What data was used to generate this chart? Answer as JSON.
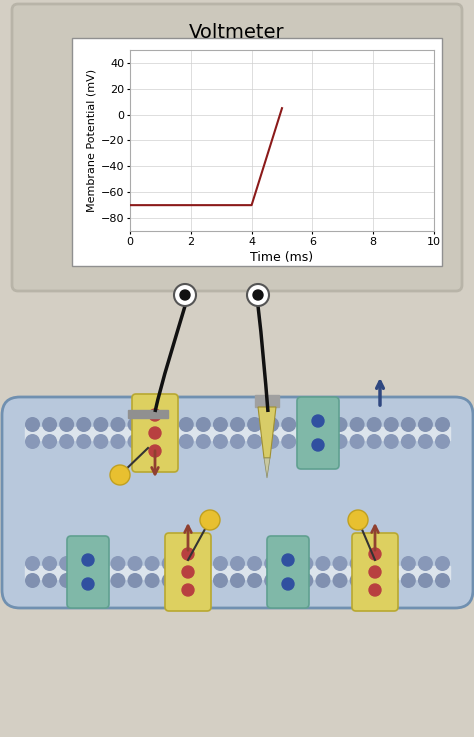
{
  "fig_width": 4.74,
  "fig_height": 7.37,
  "fig_bg": "#d4cfc4",
  "voltmeter_bezel": "#ccc8bc",
  "voltmeter_title": "Voltmeter",
  "screen_bg": "#ffffff",
  "graph_line_color": "#8b1a1a",
  "ylabel": "Membrane Potential (mV)",
  "xlabel": "Time (ms)",
  "xlim": [
    0,
    10
  ],
  "ylim": [
    -90,
    50
  ],
  "yticks": [
    -80,
    -60,
    -40,
    -20,
    0,
    20,
    40
  ],
  "xticks": [
    0,
    2,
    4,
    6,
    8,
    10
  ],
  "membrane_bg": "#c0cfdf",
  "axon_interior": "#b8c8dc",
  "lipid_head_outer": "#8090b0",
  "lipid_head_inner": "#8898b8",
  "channel_yellow": "#ddd060",
  "channel_teal": "#80b8a8",
  "dot_red": "#b84040",
  "dot_blue": "#3050a0",
  "ball_yellow": "#e8c030",
  "arrow_brown": "#904030",
  "arrow_blue": "#304880",
  "wire_color": "#111111",
  "connector_bg": "#ffffff",
  "bezel_border": "#b8b4a8",
  "screen_border": "#909090",
  "ground_color": "#909090",
  "pipette_body": "#d8cc68",
  "pipette_handle": "#a0a0a0"
}
